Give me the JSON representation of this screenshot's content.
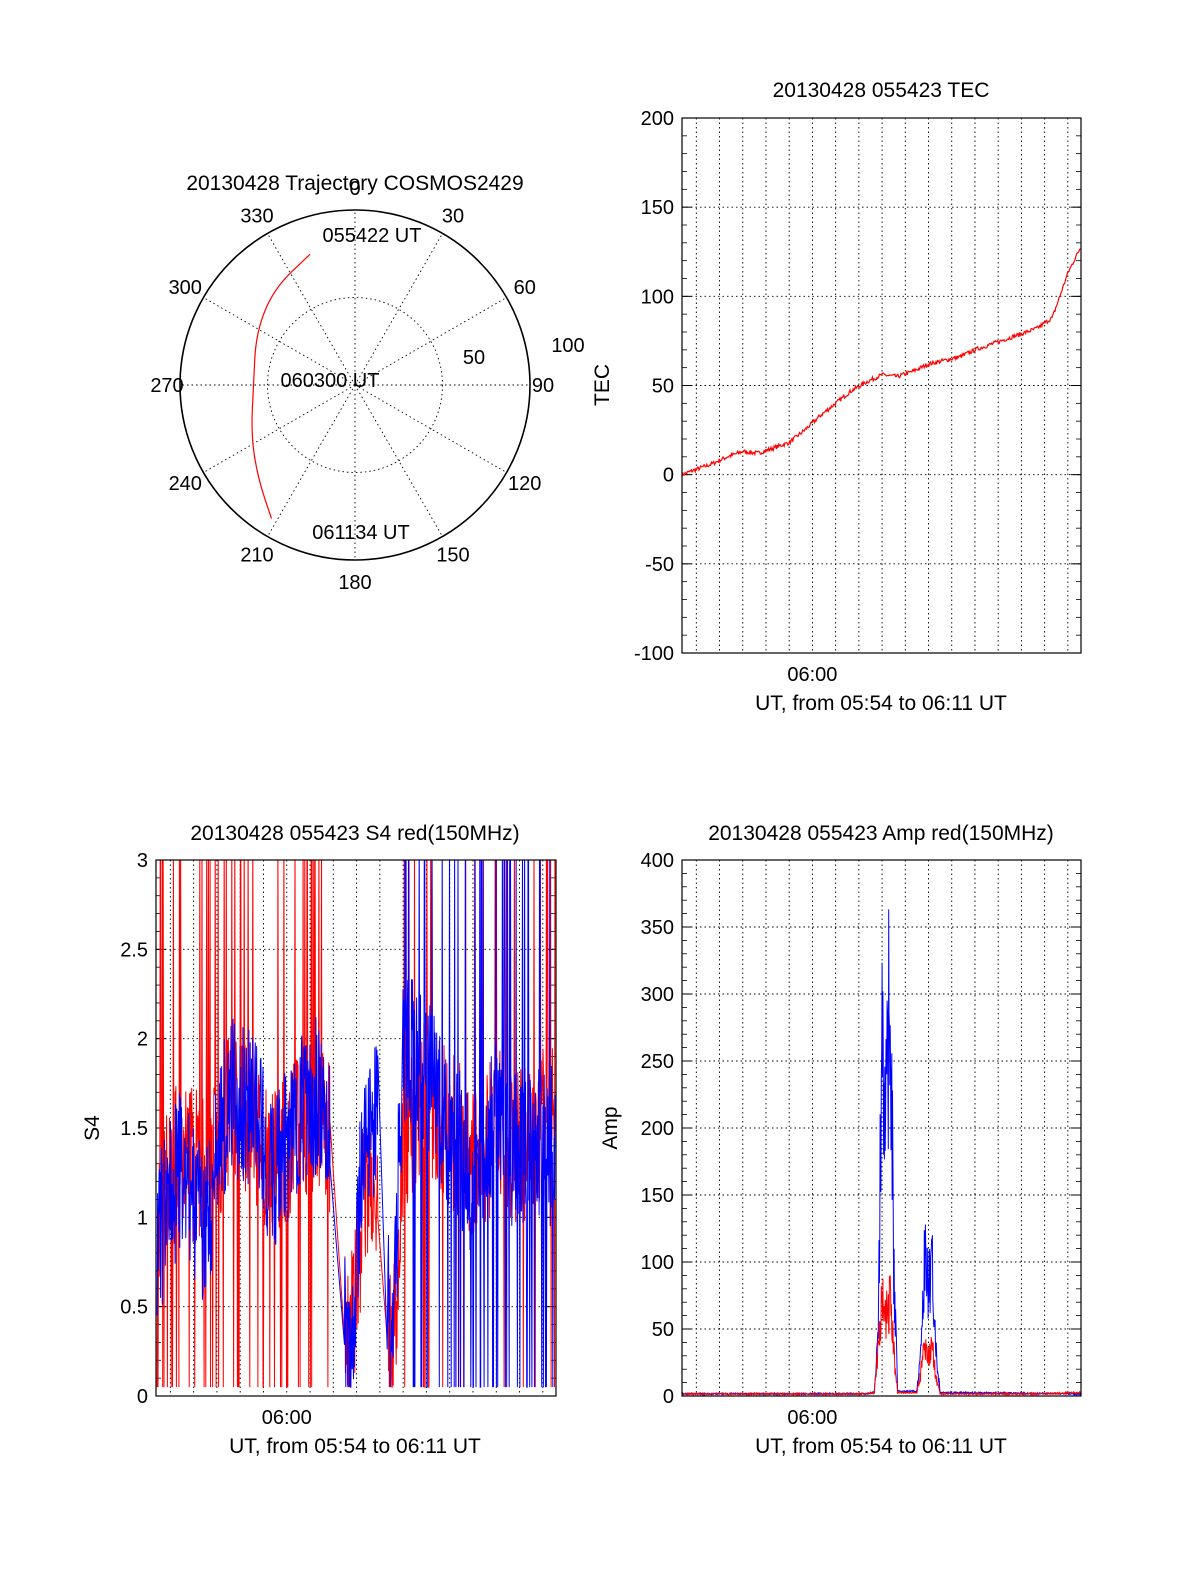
{
  "colors": {
    "red": "#ff0000",
    "blue": "#0000ff",
    "black": "#000000"
  },
  "chart_data": [
    {
      "type": "polar",
      "title": "20130428 Trajectory COSMOS2429",
      "azimuth_labels": [
        "0",
        "30",
        "60",
        "90",
        "120",
        "150",
        "180",
        "210",
        "240",
        "270",
        "300",
        "330"
      ],
      "radial_labels": [
        "50",
        "100"
      ],
      "radial_range": [
        0,
        100
      ],
      "grid": true,
      "trajectory": {
        "color": "red",
        "points": [
          {
            "azimuth": 341,
            "radius": 79
          },
          {
            "azimuth": 320,
            "radius": 72
          },
          {
            "azimuth": 298,
            "radius": 64
          },
          {
            "azimuth": 270,
            "radius": 58
          },
          {
            "azimuth": 244,
            "radius": 66
          },
          {
            "azimuth": 226,
            "radius": 77
          },
          {
            "azimuth": 212,
            "radius": 90
          }
        ]
      },
      "annotations": [
        "055422 UT",
        "060300 UT",
        "061134 UT"
      ]
    },
    {
      "type": "line",
      "title": "20130428 055423 TEC",
      "ylabel": "TEC",
      "xlabel": "UT, from 05:54 to 06:11 UT",
      "xlim": [
        "05:54:23",
        "06:11:34"
      ],
      "x_tick_labels": [
        "06:00"
      ],
      "ylim": [
        -100,
        200
      ],
      "y_ticks": [
        -100,
        -50,
        0,
        50,
        100,
        150,
        200
      ],
      "grid": true,
      "series": [
        {
          "color": "red",
          "x": [
            "05:54:23",
            "05:55:00",
            "05:55:40",
            "05:56:20",
            "05:57:00",
            "05:57:40",
            "05:58:20",
            "05:59:00",
            "05:59:40",
            "06:00:20",
            "06:01:00",
            "06:01:40",
            "06:02:20",
            "06:03:00",
            "06:03:40",
            "06:04:20",
            "06:05:00",
            "06:05:40",
            "06:06:20",
            "06:07:00",
            "06:07:40",
            "06:08:20",
            "06:09:00",
            "06:09:40",
            "06:10:20",
            "06:11:00",
            "06:11:34"
          ],
          "y": [
            0,
            3,
            6,
            10,
            13,
            12,
            15,
            18,
            25,
            33,
            40,
            47,
            52,
            56,
            55,
            58,
            62,
            64,
            66,
            70,
            73,
            76,
            79,
            82,
            88,
            113,
            128
          ]
        }
      ]
    },
    {
      "type": "line",
      "title": "20130428 055423 S4 red(150MHz)",
      "ylabel": "S4",
      "xlabel": "UT, from 05:54 to 06:11 UT",
      "xlim": [
        "05:54:23",
        "06:11:34"
      ],
      "x_tick_labels": [
        "06:00"
      ],
      "ylim": [
        0,
        3
      ],
      "y_ticks": [
        "0",
        "0.5",
        "1",
        "1.5",
        "2",
        "2.5",
        "3"
      ],
      "grid": true,
      "series": [
        {
          "color": "red",
          "x": [
            "05:54:30",
            "05:55:30",
            "05:56:30",
            "05:57:30",
            "05:58:30",
            "05:59:30",
            "06:00:30",
            "06:01:30",
            "06:02:10",
            "06:02:40",
            "06:03:20",
            "06:04:00",
            "06:04:30",
            "06:05:00",
            "06:06:00",
            "06:07:00",
            "06:08:00",
            "06:09:00",
            "06:10:00",
            "06:11:00"
          ],
          "y": [
            1.0,
            1.4,
            1.2,
            1.6,
            1.5,
            1.3,
            1.5,
            1.6,
            1.2,
            0.2,
            1.1,
            1.3,
            0.1,
            1.4,
            1.7,
            1.5,
            1.3,
            1.5,
            1.4,
            1.5
          ]
        },
        {
          "color": "blue",
          "x": [
            "05:54:30",
            "05:55:30",
            "05:56:30",
            "05:57:30",
            "05:58:30",
            "05:59:30",
            "06:00:30",
            "06:01:30",
            "06:02:10",
            "06:02:40",
            "06:03:20",
            "06:04:00",
            "06:04:30",
            "06:05:00",
            "06:06:00",
            "06:07:00",
            "06:08:00",
            "06:09:00",
            "06:10:00",
            "06:11:00"
          ],
          "y": [
            0.9,
            1.3,
            0.9,
            1.7,
            1.6,
            1.2,
            1.6,
            1.7,
            1.4,
            0.1,
            1.5,
            1.6,
            0.1,
            2.0,
            1.8,
            1.5,
            1.2,
            1.6,
            1.3,
            1.4
          ]
        }
      ]
    },
    {
      "type": "line",
      "title": "20130428 055423 Amp red(150MHz)",
      "ylabel": "Amp",
      "xlabel": "UT, from 05:54 to 06:11 UT",
      "xlim": [
        "05:54:23",
        "06:11:34"
      ],
      "x_tick_labels": [
        "06:00"
      ],
      "ylim": [
        0,
        400
      ],
      "y_ticks": [
        0,
        50,
        100,
        150,
        200,
        250,
        300,
        350,
        400
      ],
      "grid": true,
      "series": [
        {
          "color": "blue",
          "x": [
            "05:54:23",
            "06:02:20",
            "06:02:40",
            "06:02:50",
            "06:03:00",
            "06:03:10",
            "06:03:20",
            "06:03:30",
            "06:03:40",
            "06:04:30",
            "06:04:40",
            "06:04:50",
            "06:05:00",
            "06:05:10",
            "06:05:20",
            "06:05:30",
            "06:11:34"
          ],
          "y": [
            1,
            1,
            2,
            60,
            310,
            250,
            385,
            120,
            3,
            3,
            40,
            125,
            95,
            110,
            40,
            2,
            1
          ]
        },
        {
          "color": "red",
          "x": [
            "05:54:23",
            "06:02:20",
            "06:02:40",
            "06:02:50",
            "06:03:00",
            "06:03:10",
            "06:03:20",
            "06:03:30",
            "06:03:40",
            "06:04:30",
            "06:04:40",
            "06:04:50",
            "06:05:00",
            "06:05:10",
            "06:05:20",
            "06:05:30",
            "06:10:00",
            "06:11:34"
          ],
          "y": [
            1,
            1,
            2,
            40,
            80,
            70,
            85,
            40,
            2,
            2,
            20,
            45,
            35,
            40,
            15,
            1,
            1,
            2
          ]
        }
      ]
    }
  ]
}
